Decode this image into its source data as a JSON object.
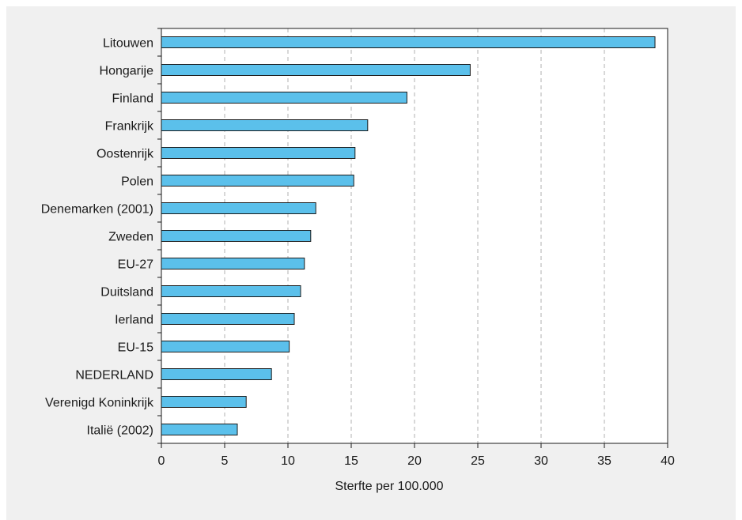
{
  "chart_data": {
    "type": "bar",
    "orientation": "horizontal",
    "categories": [
      "Litouwen",
      "Hongarije",
      "Finland",
      "Frankrijk",
      "Oostenrijk",
      "Polen",
      "Denemarken (2001)",
      "Zweden",
      "EU-27",
      "Duitsland",
      "Ierland",
      "EU-15",
      "NEDERLAND",
      "Verenigd Koninkrijk",
      "Italië (2002)"
    ],
    "values": [
      39.0,
      24.4,
      19.4,
      16.3,
      15.3,
      15.2,
      12.2,
      11.8,
      11.3,
      11.0,
      10.5,
      10.1,
      8.7,
      6.7,
      6.0
    ],
    "xlabel": "Sterfte per 100.000",
    "ylabel": "",
    "xlim": [
      0,
      40
    ],
    "xticks": [
      0,
      5,
      10,
      15,
      20,
      25,
      30,
      35,
      40
    ],
    "grid": "vertical dashed",
    "bar_color": "#5bc0eb",
    "bar_edge_color": "#1a1a1a"
  }
}
